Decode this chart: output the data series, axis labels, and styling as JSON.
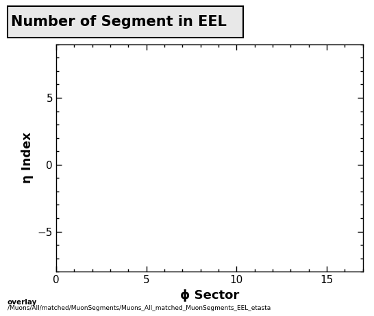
{
  "title": "Number of Segment in EEL",
  "xlabel": "ϕ Sector",
  "ylabel": "η Index",
  "xlim": [
    0,
    17
  ],
  "ylim": [
    -8,
    9
  ],
  "xticks": [
    0,
    5,
    10,
    15
  ],
  "yticks": [
    -5,
    0,
    5
  ],
  "x_minor_tick": 1,
  "y_minor_tick": 1,
  "background_color": "#ffffff",
  "plot_bg_color": "#ffffff",
  "title_fontsize": 15,
  "label_fontsize": 13,
  "tick_fontsize": 11,
  "footer_line1": "overlay",
  "footer_line2": "/Muons/All/matched/MuonSegments/Muons_All_matched_MuonSegments_EEL_etasta",
  "legend_box_color": "#e8e8e8",
  "legend_box_edge": "#000000"
}
